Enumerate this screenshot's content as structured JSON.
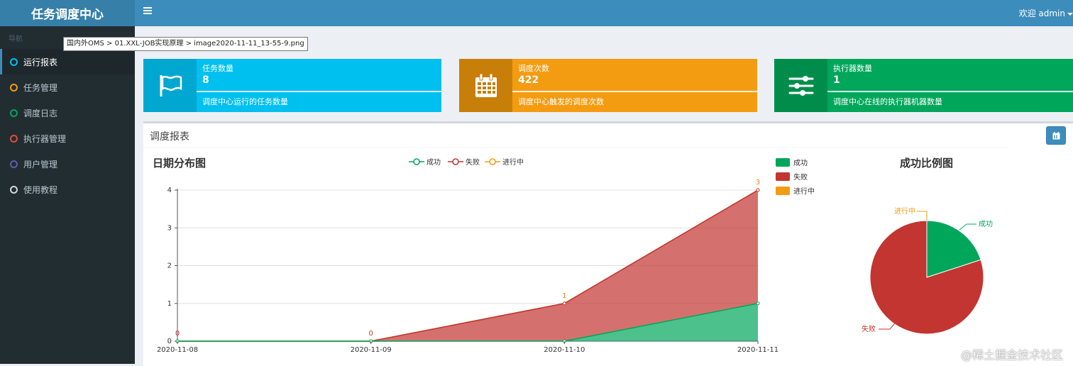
{
  "app": {
    "title": "任务调度中心"
  },
  "header": {
    "welcome": "欢迎 admin"
  },
  "sidebar": {
    "section": "导航",
    "items": [
      {
        "label": "运行报表",
        "color": "#00c0ef",
        "active": true
      },
      {
        "label": "任务管理",
        "color": "#f39c12"
      },
      {
        "label": "调度日志",
        "color": "#00a65a"
      },
      {
        "label": "执行器管理",
        "color": "#dd4b39"
      },
      {
        "label": "用户管理",
        "color": "#605ca8"
      },
      {
        "label": "使用教程",
        "color": "#d2d6de"
      }
    ]
  },
  "tooltip": {
    "path": "国内外OMS > 01.XXL-JOB实现原理 > image2020-11-11_13-55-9.png"
  },
  "info_boxes": [
    {
      "title": "任务数量",
      "number": "8",
      "desc": "调度中心运行的任务数量",
      "icon": "flag-icon",
      "color": "#00c0ef",
      "icon_bg": "#00a7d0"
    },
    {
      "title": "调度次数",
      "number": "422",
      "desc": "调度中心触发的调度次数",
      "icon": "calendar-icon",
      "color": "#f39c12",
      "icon_bg": "#c87f0a"
    },
    {
      "title": "执行器数量",
      "number": "1",
      "desc": "调度中心在线的执行器机器数量",
      "icon": "sliders-icon",
      "color": "#00a65a",
      "icon_bg": "#008d4c"
    }
  ],
  "report": {
    "title": "调度报表"
  },
  "chart_data": [
    {
      "type": "area",
      "title": "日期分布图",
      "categories": [
        "2020-11-08",
        "2020-11-09",
        "2020-11-10",
        "2020-11-11"
      ],
      "series": [
        {
          "name": "成功",
          "values": [
            0,
            0,
            0,
            1
          ],
          "color": "#00a65a"
        },
        {
          "name": "失败",
          "values": [
            0,
            0,
            1,
            3
          ],
          "color": "#c23531"
        },
        {
          "name": "进行中",
          "values": [
            0,
            0,
            0,
            0
          ],
          "color": "#f39c12"
        }
      ],
      "stacked": true,
      "ylim": [
        0,
        4
      ],
      "yticks": [
        0,
        1,
        2,
        3,
        4
      ],
      "data_labels": [
        "0",
        "0",
        "1",
        "3"
      ],
      "legend_top": [
        "成功",
        "失败",
        "进行中"
      ],
      "grid": true
    },
    {
      "type": "pie",
      "title": "成功比例图",
      "slices": [
        {
          "name": "成功",
          "value": 1,
          "color": "#00a65a"
        },
        {
          "name": "失败",
          "value": 4,
          "color": "#c23531"
        },
        {
          "name": "进行中",
          "value": 0,
          "color": "#f39c12"
        }
      ],
      "legend": [
        "成功",
        "失败",
        "进行中"
      ]
    }
  ],
  "watermark": "@稀土掘金技术社区"
}
